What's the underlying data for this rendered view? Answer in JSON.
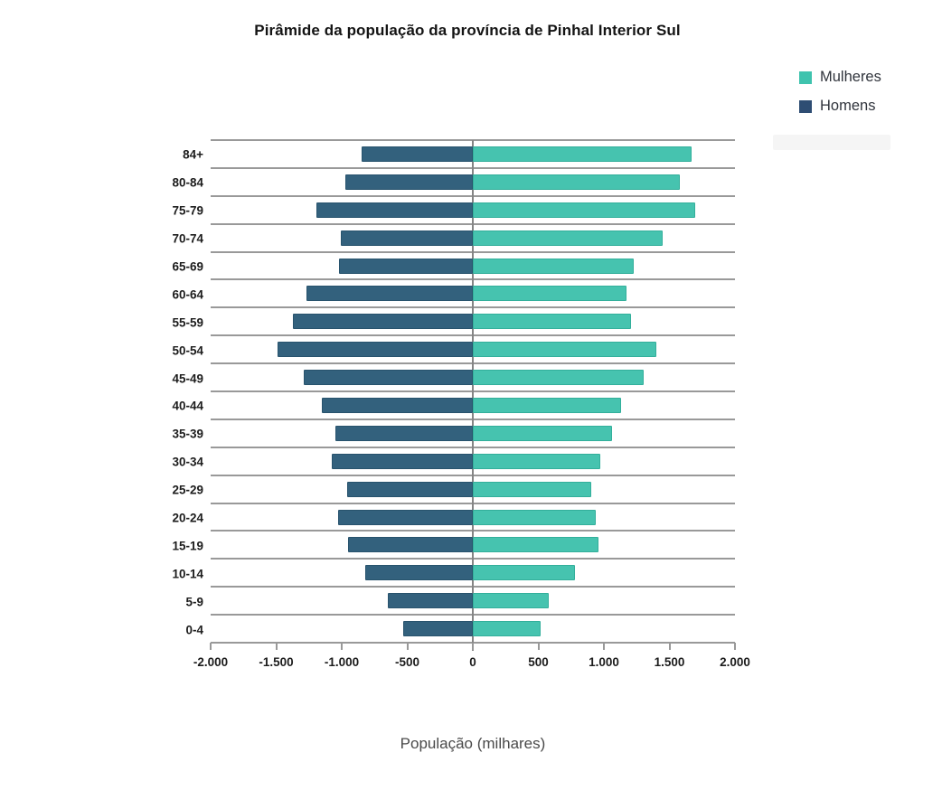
{
  "title": "Pirâmide da população da província de Pinhal Interior Sul",
  "legend": {
    "items": [
      {
        "label": "Mulheres",
        "color": "#3fc3ae"
      },
      {
        "label": "Homens",
        "color": "#2e4d73"
      }
    ]
  },
  "chart_data": {
    "type": "bar",
    "orientation": "horizontal",
    "subtype": "population-pyramid",
    "title": "Pirâmide da população da província de Pinhal Interior Sul",
    "xlabel": "População (milhares)",
    "ylabel": "",
    "xlim": [
      -2000,
      2000
    ],
    "grid": "horizontal",
    "legend_position": "top-right",
    "categories": [
      "84+",
      "80-84",
      "75-79",
      "70-74",
      "65-69",
      "60-64",
      "55-59",
      "50-54",
      "45-49",
      "40-44",
      "35-39",
      "30-34",
      "25-29",
      "20-24",
      "15-19",
      "10-14",
      "5-9",
      "0-4"
    ],
    "series": [
      {
        "name": "Mulheres",
        "color": "#46c3af",
        "border_color": "#33af9b",
        "values": [
          1670,
          1580,
          1695,
          1450,
          1230,
          1175,
          1210,
          1400,
          1300,
          1130,
          1060,
          970,
          900,
          940,
          960,
          780,
          580,
          515
        ]
      },
      {
        "name": "Homens",
        "color": "#33617d",
        "border_color": "#28536d",
        "values": [
          -850,
          -970,
          -1190,
          -1010,
          -1020,
          -1270,
          -1375,
          -1490,
          -1290,
          -1150,
          -1045,
          -1075,
          -960,
          -1025,
          -955,
          -820,
          -650,
          -530
        ]
      }
    ],
    "xticks": [
      -2000,
      -1500,
      -1000,
      -500,
      0,
      500,
      1000,
      1500,
      2000
    ],
    "xtick_labels": [
      "-2.000",
      "-1.500",
      "-1.000",
      "-500",
      "0",
      "500",
      "1.000",
      "1.500",
      "2.000"
    ],
    "axis_color": "#999999",
    "zero_line_color": "#858585"
  }
}
